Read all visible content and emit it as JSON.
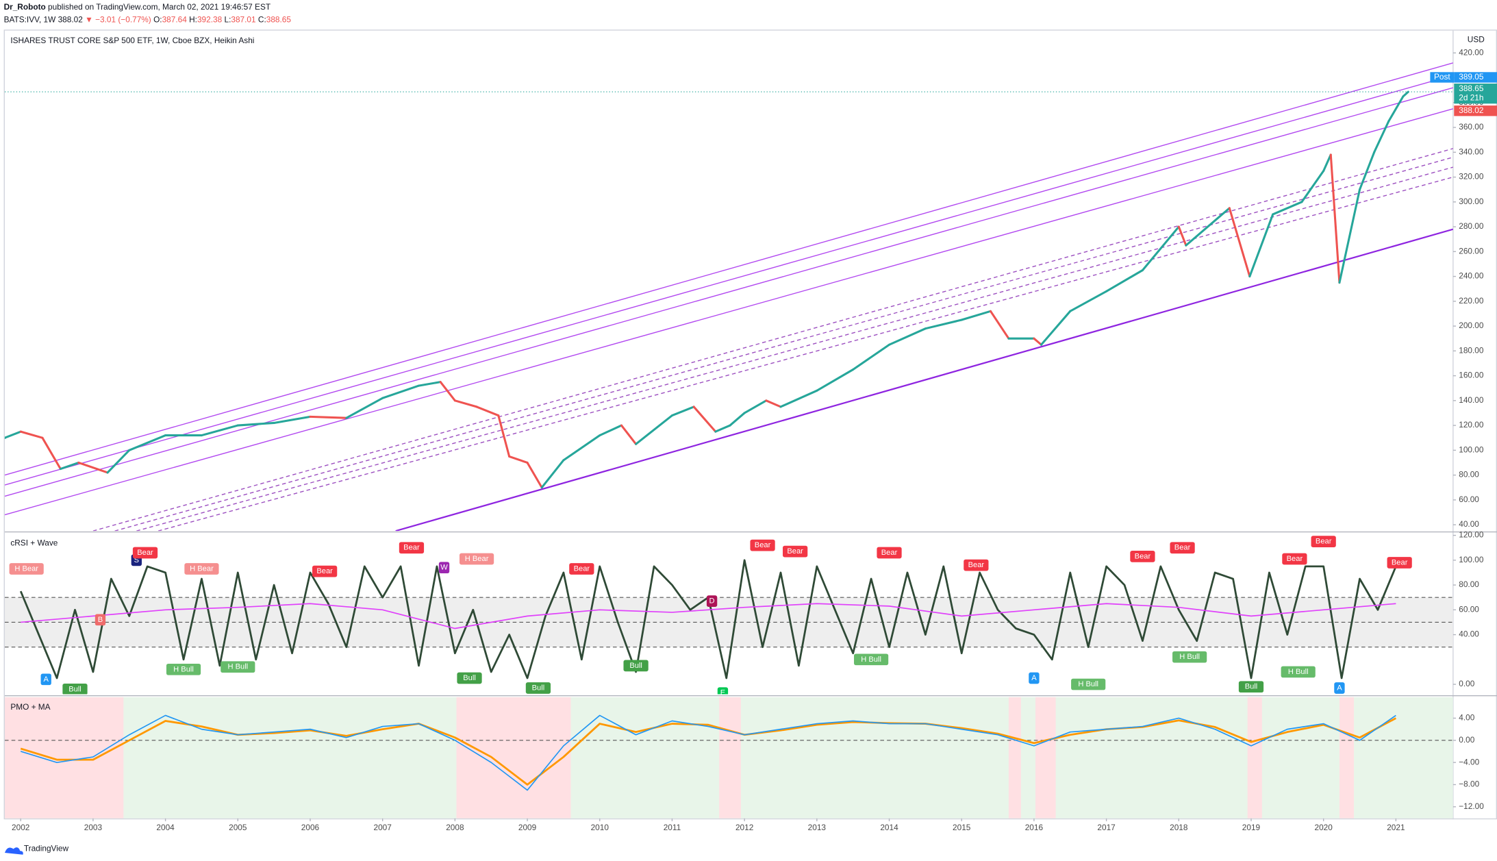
{
  "header": {
    "author": "Dr_Roboto",
    "published": "published on TradingView.com, March 02, 2021 19:46:57 EST",
    "symbol": "BATS:IVV, 1W",
    "last": 388.02,
    "change": "▼ −3.01 (−0.77%)",
    "ohlc": [
      {
        "label": "O:",
        "value": 387.64
      },
      {
        "label": "H:",
        "value": 392.38
      },
      {
        "label": "L:",
        "value": 387.01
      },
      {
        "label": "C:",
        "value": 388.65
      }
    ]
  },
  "footer": {
    "brand": "TradingView"
  },
  "chart_data": [
    {
      "type": "line",
      "title": "ISHARES TRUST CORE S&P 500 ETF, 1W, Cboe BZX, Heikin Ashi",
      "currency": "USD",
      "x": [
        2001.78,
        2002.0,
        2002.3,
        2002.55,
        2002.8,
        2003.2,
        2003.5,
        2004.0,
        2004.5,
        2005.0,
        2005.5,
        2006.0,
        2006.5,
        2007.0,
        2007.5,
        2007.8,
        2008.0,
        2008.3,
        2008.6,
        2008.75,
        2009.0,
        2009.2,
        2009.5,
        2010.0,
        2010.3,
        2010.5,
        2011.0,
        2011.3,
        2011.6,
        2011.8,
        2012.0,
        2012.3,
        2012.5,
        2013.0,
        2013.5,
        2014.0,
        2014.5,
        2015.0,
        2015.4,
        2015.65,
        2016.0,
        2016.1,
        2016.5,
        2017.0,
        2017.5,
        2018.0,
        2018.1,
        2018.7,
        2018.98,
        2019.3,
        2019.7,
        2020.0,
        2020.1,
        2020.22,
        2020.5,
        2020.7,
        2020.9,
        2021.1,
        2021.17
      ],
      "values": [
        110,
        115,
        110,
        85,
        90,
        82,
        100,
        112,
        112,
        120,
        122,
        127,
        126,
        142,
        152,
        155,
        140,
        135,
        128,
        95,
        90,
        70,
        92,
        112,
        120,
        105,
        128,
        135,
        115,
        120,
        130,
        140,
        135,
        148,
        165,
        185,
        198,
        205,
        212,
        190,
        190,
        185,
        212,
        228,
        245,
        280,
        265,
        295,
        240,
        290,
        300,
        325,
        338,
        235,
        310,
        340,
        365,
        385,
        388.65
      ],
      "up_color": "#26a69a",
      "down_color": "#ef5350",
      "xlim": [
        2001.78,
        2021.79
      ],
      "ylim": [
        35,
        438
      ],
      "yticks": [
        {
          "value": 40,
          "label": "40.00"
        },
        {
          "value": 60,
          "label": "60.00"
        },
        {
          "value": 80,
          "label": "80.00"
        },
        {
          "value": 100,
          "label": "100.00"
        },
        {
          "value": 120,
          "label": "120.00"
        },
        {
          "value": 140,
          "label": "140.00"
        },
        {
          "value": 160,
          "label": "160.00"
        },
        {
          "value": 180,
          "label": "180.00"
        },
        {
          "value": 200,
          "label": "200.00"
        },
        {
          "value": 220,
          "label": "220.00"
        },
        {
          "value": 240,
          "label": "240.00"
        },
        {
          "value": 260,
          "label": "260.00"
        },
        {
          "value": 280,
          "label": "280.00"
        },
        {
          "value": 300,
          "label": "300.00"
        },
        {
          "value": 320,
          "label": "320.00"
        },
        {
          "value": 340,
          "label": "340.00"
        },
        {
          "value": 360,
          "label": "360.00"
        },
        {
          "value": 380,
          "label": "380.00"
        },
        {
          "value": 400,
          "label": "400.00"
        },
        {
          "value": 420,
          "label": "420.00"
        }
      ],
      "grid": false,
      "trendlines": [
        {
          "x": [
            2001.78,
            2021.79
          ],
          "y": [
            80,
            412
          ],
          "color": "#b249f0",
          "dashed": false
        },
        {
          "x": [
            2001.78,
            2021.79
          ],
          "y": [
            72,
            402
          ],
          "color": "#b249f0",
          "dashed": false
        },
        {
          "x": [
            2001.78,
            2021.79
          ],
          "y": [
            63,
            392
          ],
          "color": "#b249f0",
          "dashed": false
        },
        {
          "x": [
            2001.78,
            2021.79
          ],
          "y": [
            48,
            375
          ],
          "color": "#b249f0",
          "dashed": false
        },
        {
          "x": [
            2003.0,
            2021.79
          ],
          "y": [
            35,
            343
          ],
          "color": "#9c4fc0",
          "dashed": true
        },
        {
          "x": [
            2003.3,
            2021.79
          ],
          "y": [
            35,
            336
          ],
          "color": "#9c4fc0",
          "dashed": true
        },
        {
          "x": [
            2003.6,
            2021.79
          ],
          "y": [
            35,
            328
          ],
          "color": "#9c4fc0",
          "dashed": true
        },
        {
          "x": [
            2003.9,
            2021.79
          ],
          "y": [
            35,
            320
          ],
          "color": "#9c4fc0",
          "dashed": true
        },
        {
          "x": [
            2007.18,
            2021.79
          ],
          "y": [
            35,
            278
          ],
          "color": "#8e24e0",
          "dashed": false
        }
      ],
      "price_line": 388.65,
      "price_labels": [
        {
          "text": "Post",
          "value": 389.05,
          "color": "#2196f3"
        },
        {
          "value": 388.65,
          "sub": "2d 21h",
          "color": "#26a69a"
        },
        {
          "value": 388.02,
          "color": "#ef5350"
        }
      ]
    },
    {
      "type": "line",
      "title": "cRSI + Wave",
      "xlim": [
        2001.78,
        2021.79
      ],
      "ylim": [
        -8,
        122
      ],
      "yticks": [
        {
          "value": 0,
          "label": "0.00"
        },
        {
          "value": 40,
          "label": "40.00"
        },
        {
          "value": 60,
          "label": "60.00"
        },
        {
          "value": 80,
          "label": "80.00"
        },
        {
          "value": 100,
          "label": "100.00"
        },
        {
          "value": 120,
          "label": "120.00"
        }
      ],
      "levels": [
        70,
        50,
        30
      ],
      "band_color": "#eeeeee",
      "series": [
        {
          "color": "#2f4a36",
          "x": [
            2002,
            2002.25,
            2002.5,
            2002.75,
            2003,
            2003.25,
            2003.5,
            2003.75,
            2004,
            2004.25,
            2004.5,
            2004.75,
            2005,
            2005.25,
            2005.5,
            2005.75,
            2006,
            2006.25,
            2006.5,
            2006.75,
            2007,
            2007.25,
            2007.5,
            2007.75,
            2008,
            2008.25,
            2008.5,
            2008.75,
            2009,
            2009.25,
            2009.5,
            2009.75,
            2010,
            2010.25,
            2010.5,
            2010.75,
            2011,
            2011.25,
            2011.5,
            2011.75,
            2012,
            2012.25,
            2012.5,
            2012.75,
            2013,
            2013.25,
            2013.5,
            2013.75,
            2014,
            2014.25,
            2014.5,
            2014.75,
            2015,
            2015.25,
            2015.5,
            2015.75,
            2016,
            2016.25,
            2016.5,
            2016.75,
            2017,
            2017.25,
            2017.5,
            2017.75,
            2018,
            2018.25,
            2018.5,
            2018.75,
            2019,
            2019.25,
            2019.5,
            2019.75,
            2020,
            2020.25,
            2020.5,
            2020.75,
            2021
          ],
          "values": [
            75,
            40,
            5,
            60,
            10,
            85,
            55,
            95,
            90,
            20,
            85,
            15,
            90,
            20,
            80,
            25,
            90,
            65,
            30,
            95,
            70,
            95,
            15,
            95,
            25,
            60,
            10,
            40,
            5,
            55,
            90,
            20,
            95,
            50,
            10,
            95,
            80,
            60,
            70,
            5,
            100,
            30,
            90,
            15,
            95,
            60,
            25,
            85,
            30,
            90,
            40,
            95,
            25,
            90,
            60,
            45,
            40,
            20,
            90,
            30,
            95,
            80,
            35,
            95,
            60,
            35,
            90,
            85,
            5,
            90,
            40,
            95,
            95,
            5,
            85,
            60,
            95
          ]
        },
        {
          "color": "#e040fb",
          "x": [
            2002,
            2003,
            2004,
            2005,
            2006,
            2007,
            2008,
            2009,
            2010,
            2011,
            2012,
            2013,
            2014,
            2015,
            2016,
            2017,
            2018,
            2019,
            2020,
            2021
          ],
          "values": [
            50,
            55,
            60,
            62,
            65,
            60,
            45,
            55,
            60,
            58,
            62,
            65,
            63,
            55,
            60,
            65,
            62,
            55,
            60,
            65
          ]
        }
      ],
      "annotations": [
        {
          "x": 2002.08,
          "y": 93,
          "text": "H Bear",
          "color": "#f58f8f"
        },
        {
          "x": 2002.35,
          "y": 4,
          "text": "A",
          "color": "#2196f3"
        },
        {
          "x": 2002.75,
          "y": -4,
          "text": "Bull",
          "color": "#43a047"
        },
        {
          "x": 2003.1,
          "y": 52,
          "text": "B",
          "color": "#ef6c6c"
        },
        {
          "x": 2003.6,
          "y": 100,
          "text": "S",
          "color": "#1a237e"
        },
        {
          "x": 2003.72,
          "y": 106,
          "text": "Bear",
          "color": "#f23645"
        },
        {
          "x": 2004.25,
          "y": 12,
          "text": "H Bull",
          "color": "#66bb6a"
        },
        {
          "x": 2004.5,
          "y": 93,
          "text": "H Bear",
          "color": "#f58f8f"
        },
        {
          "x": 2005.0,
          "y": 14,
          "text": "H Bull",
          "color": "#66bb6a"
        },
        {
          "x": 2006.2,
          "y": 91,
          "text": "Bear",
          "color": "#f23645"
        },
        {
          "x": 2007.4,
          "y": 110,
          "text": "Bear",
          "color": "#f23645"
        },
        {
          "x": 2007.85,
          "y": 94,
          "text": "W",
          "color": "#9c27b0"
        },
        {
          "x": 2008.3,
          "y": 101,
          "text": "H Bear",
          "color": "#f58f8f"
        },
        {
          "x": 2008.2,
          "y": 5,
          "text": "Bull",
          "color": "#43a047"
        },
        {
          "x": 2009.15,
          "y": -3,
          "text": "Bull",
          "color": "#43a047"
        },
        {
          "x": 2009.75,
          "y": 93,
          "text": "Bear",
          "color": "#f23645"
        },
        {
          "x": 2010.5,
          "y": 15,
          "text": "Bull",
          "color": "#43a047"
        },
        {
          "x": 2011.55,
          "y": 67,
          "text": "D",
          "color": "#ad1457"
        },
        {
          "x": 2011.7,
          "y": -7,
          "text": "E",
          "color": "#00c853"
        },
        {
          "x": 2012.25,
          "y": 112,
          "text": "Bear",
          "color": "#f23645"
        },
        {
          "x": 2012.7,
          "y": 107,
          "text": "Bear",
          "color": "#f23645"
        },
        {
          "x": 2013.75,
          "y": 20,
          "text": "H Bull",
          "color": "#66bb6a"
        },
        {
          "x": 2014.0,
          "y": 106,
          "text": "Bear",
          "color": "#f23645"
        },
        {
          "x": 2015.2,
          "y": 96,
          "text": "Bear",
          "color": "#f23645"
        },
        {
          "x": 2016.0,
          "y": 5,
          "text": "A",
          "color": "#2196f3"
        },
        {
          "x": 2016.75,
          "y": 0,
          "text": "H Bull",
          "color": "#66bb6a"
        },
        {
          "x": 2017.5,
          "y": 103,
          "text": "Bear",
          "color": "#f23645"
        },
        {
          "x": 2018.05,
          "y": 110,
          "text": "Bear",
          "color": "#f23645"
        },
        {
          "x": 2018.15,
          "y": 22,
          "text": "H Bull",
          "color": "#66bb6a"
        },
        {
          "x": 2019.0,
          "y": -2,
          "text": "Bull",
          "color": "#43a047"
        },
        {
          "x": 2019.6,
          "y": 101,
          "text": "Bear",
          "color": "#f23645"
        },
        {
          "x": 2019.65,
          "y": 10,
          "text": "H Bull",
          "color": "#66bb6a"
        },
        {
          "x": 2020.0,
          "y": 115,
          "text": "Bear",
          "color": "#f23645"
        },
        {
          "x": 2020.22,
          "y": -3,
          "text": "A",
          "color": "#2196f3"
        },
        {
          "x": 2021.05,
          "y": 98,
          "text": "Bear",
          "color": "#f23645"
        }
      ]
    },
    {
      "type": "line",
      "title": "PMO + MA",
      "xlim": [
        2001.78,
        2021.79
      ],
      "ylim": [
        -14.1,
        7.8
      ],
      "yticks": [
        {
          "value": -12,
          "label": "−12.00"
        },
        {
          "value": -8,
          "label": "−8.00"
        },
        {
          "value": -4,
          "label": "−4.00"
        },
        {
          "value": 0,
          "label": "0.00"
        },
        {
          "value": 4,
          "label": "4.00"
        }
      ],
      "levels": [
        0
      ],
      "bg_color": "#e8f5e9",
      "shade_color": "#ffe0e3",
      "shading": [
        {
          "from": 2001.78,
          "to": 2003.42
        },
        {
          "from": 2008.02,
          "to": 2009.6
        },
        {
          "from": 2011.65,
          "to": 2011.95
        },
        {
          "from": 2015.65,
          "to": 2015.82
        },
        {
          "from": 2016.02,
          "to": 2016.3
        },
        {
          "from": 2018.95,
          "to": 2019.15
        },
        {
          "from": 2020.22,
          "to": 2020.42
        }
      ],
      "series": [
        {
          "color": "#ff9800",
          "x": [
            2002,
            2002.5,
            2003,
            2003.5,
            2004,
            2004.5,
            2005,
            2005.5,
            2006,
            2006.5,
            2007,
            2007.5,
            2008,
            2008.5,
            2009,
            2009.5,
            2010,
            2010.5,
            2011,
            2011.5,
            2012,
            2012.5,
            2013,
            2013.5,
            2014,
            2014.5,
            2015,
            2015.5,
            2016,
            2016.5,
            2017,
            2017.5,
            2018,
            2018.5,
            2019,
            2019.5,
            2020,
            2020.5,
            2021
          ],
          "values": [
            -1.5,
            -3.5,
            -3.5,
            0,
            3.5,
            2.5,
            1,
            1.3,
            1.8,
            0.8,
            2,
            3,
            0.5,
            -3,
            -8,
            -3,
            3,
            1.5,
            3,
            2.8,
            1,
            1.8,
            2.8,
            3.3,
            3.1,
            3,
            2.2,
            1.2,
            -0.5,
            1,
            2,
            2.4,
            3.6,
            2.4,
            -0.3,
            1.5,
            2.8,
            0.5,
            4
          ]
        },
        {
          "color": "#2196f3",
          "x": [
            2002,
            2002.5,
            2003,
            2003.5,
            2004,
            2004.5,
            2005,
            2005.5,
            2006,
            2006.5,
            2007,
            2007.5,
            2008,
            2008.5,
            2009,
            2009.5,
            2010,
            2010.5,
            2011,
            2011.5,
            2012,
            2012.5,
            2013,
            2013.5,
            2014,
            2014.5,
            2015,
            2015.5,
            2016,
            2016.5,
            2017,
            2017.5,
            2018,
            2018.5,
            2019,
            2019.5,
            2020,
            2020.5,
            2021
          ],
          "values": [
            -2,
            -4,
            -3,
            1,
            4.5,
            2,
            1,
            1.5,
            2,
            0.5,
            2.5,
            3,
            0,
            -4,
            -9,
            -1,
            4.5,
            1,
            3.5,
            2.5,
            1,
            2,
            3,
            3.5,
            3,
            3,
            2,
            1,
            -1,
            1.5,
            2,
            2.5,
            4,
            2,
            -1,
            2,
            3,
            0,
            4.5
          ]
        }
      ],
      "xticks": [
        2002,
        2003,
        2004,
        2005,
        2006,
        2007,
        2008,
        2009,
        2010,
        2011,
        2012,
        2013,
        2014,
        2015,
        2016,
        2017,
        2018,
        2019,
        2020,
        2021
      ]
    }
  ]
}
